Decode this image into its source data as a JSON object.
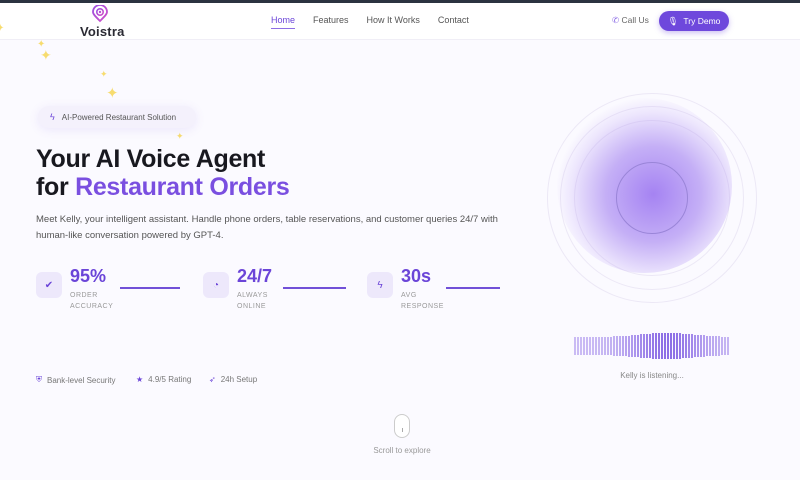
{
  "brand": {
    "name": "Voistra",
    "accent": "#6e48dc"
  },
  "nav": {
    "items": [
      {
        "label": "Home",
        "active": true
      },
      {
        "label": "Features"
      },
      {
        "label": "How It Works"
      },
      {
        "label": "Contact"
      }
    ],
    "call_label": "Call Us",
    "demo_label": "Try Demo"
  },
  "hero": {
    "badge": "AI-Powered Restaurant Solution",
    "title_line1": "Your AI Voice Agent",
    "title_line2_prefix": "for ",
    "title_line2_accent": "Restaurant Orders",
    "description": "Meet Kelly, your intelligent assistant. Handle phone orders, table reservations, and customer queries 24/7 with human-like conversation powered by GPT-4.",
    "stats": [
      {
        "icon": "check-circle-icon",
        "value": "95%",
        "label1": "ORDER",
        "label2": "ACCURACY"
      },
      {
        "icon": "clock-icon",
        "value": "24/7",
        "label1": "ALWAYS",
        "label2": "ONLINE"
      },
      {
        "icon": "bolt-icon",
        "value": "30s",
        "label1": "AVG",
        "label2": "RESPONSE"
      }
    ],
    "trust": [
      {
        "icon": "shield-icon",
        "label": "Bank-level Security"
      },
      {
        "icon": "star-icon",
        "label": "4.9/5 Rating"
      },
      {
        "icon": "rocket-icon",
        "label": "24h Setup"
      }
    ]
  },
  "voice": {
    "status": "Kelly is listening..."
  },
  "scroll_hint": "Scroll to explore"
}
